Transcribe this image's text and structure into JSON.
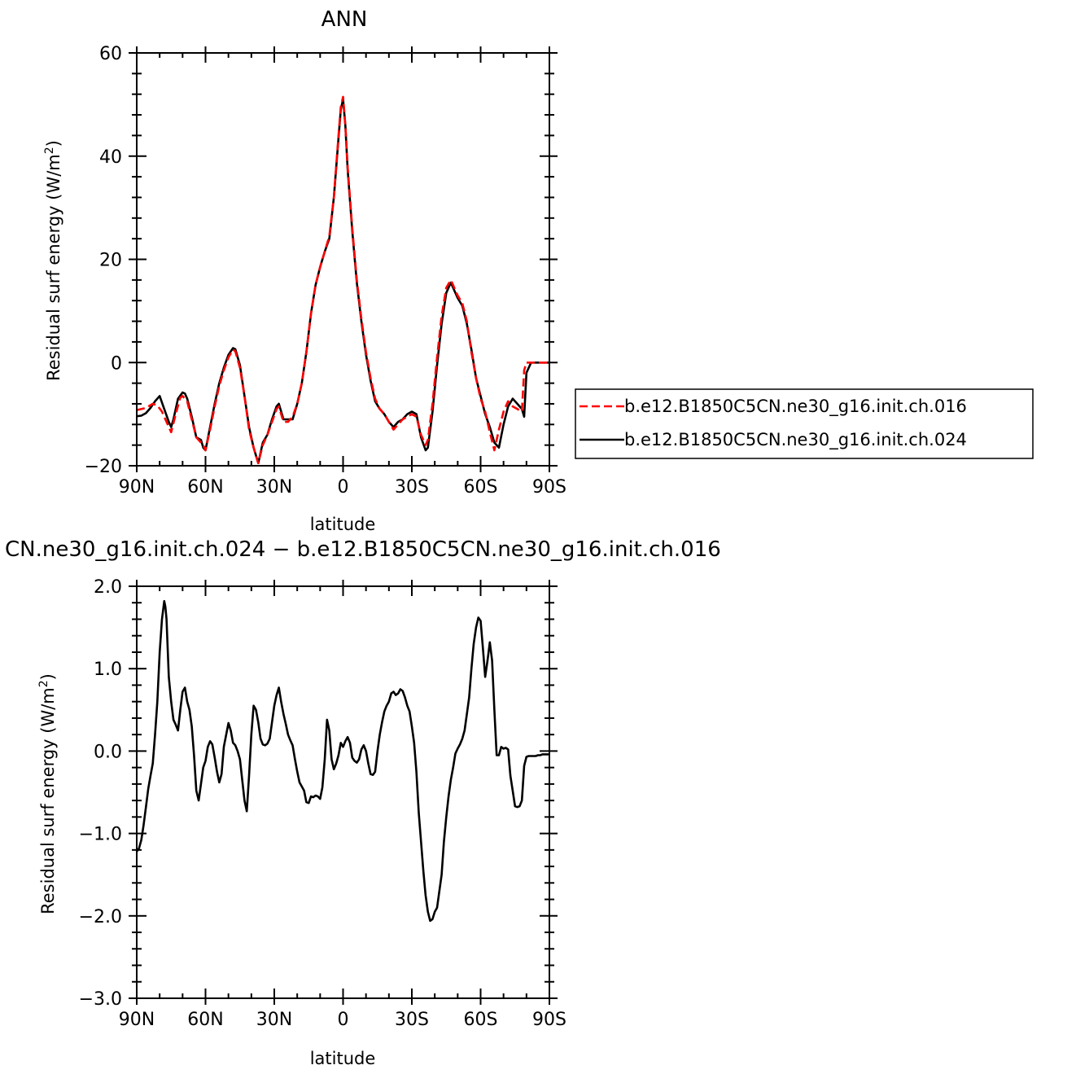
{
  "chart_data": [
    {
      "type": "line",
      "title": "ANN",
      "xlabel": "latitude",
      "ylabel": "Residual surf energy (W/m²)",
      "ylabel_base": "Residual surf energy (W/m",
      "ylabel_sup": "2",
      "ylabel_end": ")",
      "xlim": [
        90,
        -90
      ],
      "ylim": [
        -20,
        60
      ],
      "xticks": [
        90,
        60,
        30,
        0,
        -30,
        -60,
        -90
      ],
      "xtick_labels": [
        "90N",
        "60N",
        "30N",
        "0",
        "30S",
        "60S",
        "90S"
      ],
      "yticks": [
        -20,
        0,
        20,
        40,
        60
      ],
      "ytick_labels": [
        "−20",
        "0",
        "20",
        "40",
        "60"
      ],
      "legend": "right",
      "series": [
        {
          "name": "b.e12.B1850C5CN.ne30_g16.init.ch.016",
          "color": "#ff0000",
          "dash": true,
          "x": [
            90,
            86,
            83,
            81,
            79,
            77,
            75,
            73,
            71,
            70,
            68,
            66,
            64,
            62,
            61,
            60,
            58,
            56,
            54,
            52,
            50,
            48,
            47,
            45,
            43,
            41,
            39,
            37,
            35,
            33,
            31,
            29,
            28,
            26,
            24,
            22,
            20,
            18,
            16,
            14,
            12,
            10,
            8,
            6,
            4,
            2,
            1,
            0,
            -1,
            -2,
            -4,
            -6,
            -8,
            -10,
            -12,
            -14,
            -16,
            -18,
            -20,
            -22,
            -24,
            -26,
            -28,
            -30,
            -32,
            -34,
            -36,
            -37,
            -39,
            -41,
            -43,
            -45,
            -47,
            -48,
            -50,
            -52,
            -54,
            -56,
            -58,
            -60,
            -62,
            -64,
            -66,
            -68,
            -70,
            -72,
            -74,
            -76,
            -78,
            -79,
            -80,
            -82,
            -84,
            -86,
            -88,
            -90
          ],
          "y": [
            -9.2,
            -8.8,
            -8.0,
            -8.3,
            -9.5,
            -11.5,
            -13.5,
            -10.0,
            -6.8,
            -6.5,
            -7.5,
            -11.0,
            -14.5,
            -15.5,
            -16.0,
            -17.0,
            -13.0,
            -8.5,
            -4.5,
            -1.5,
            1.0,
            2.5,
            2.2,
            -1.0,
            -6.5,
            -13.0,
            -16.5,
            -19.5,
            -16.0,
            -14.0,
            -11.5,
            -9.0,
            -8.5,
            -11.5,
            -11.5,
            -10.5,
            -8.0,
            -4.0,
            2.0,
            9.5,
            15.0,
            18.5,
            21.5,
            24.5,
            32.0,
            44.0,
            49.5,
            51.5,
            46.0,
            38.0,
            26.0,
            16.0,
            8.5,
            2.0,
            -3.0,
            -7.0,
            -9.0,
            -10.0,
            -11.5,
            -13.0,
            -12.0,
            -11.0,
            -10.5,
            -10.0,
            -10.5,
            -14.0,
            -16.0,
            -15.0,
            -8.0,
            1.0,
            9.0,
            14.5,
            16.0,
            15.0,
            13.0,
            11.5,
            8.0,
            2.0,
            -3.0,
            -7.0,
            -9.5,
            -13.5,
            -17.0,
            -13.0,
            -9.5,
            -7.5,
            -8.5,
            -9.0,
            -9.5,
            -1.5,
            0,
            0,
            0,
            0,
            0,
            0
          ]
        },
        {
          "name": "b.e12.B1850C5CN.ne30_g16.init.ch.024",
          "color": "#000000",
          "dash": false,
          "x": [
            90,
            88,
            86,
            84,
            82,
            80,
            78,
            76,
            75,
            74,
            72,
            70,
            69,
            68,
            66,
            64,
            62,
            61,
            60,
            58,
            56,
            54,
            52,
            50,
            48,
            47,
            45,
            43,
            41,
            39,
            37,
            35,
            33,
            31,
            29,
            28,
            26,
            24,
            22,
            20,
            18,
            16,
            14,
            12,
            10,
            8,
            6,
            4,
            2,
            1,
            0,
            -1,
            -2,
            -4,
            -6,
            -8,
            -10,
            -12,
            -14,
            -16,
            -18,
            -20,
            -22,
            -24,
            -26,
            -28,
            -30,
            -32,
            -34,
            -36,
            -37,
            -39,
            -41,
            -43,
            -45,
            -47,
            -48,
            -50,
            -52,
            -54,
            -56,
            -58,
            -60,
            -62,
            -64,
            -66,
            -68,
            -70,
            -72,
            -74,
            -76,
            -78,
            -79,
            -80,
            -82,
            -84,
            -86,
            -88,
            -90
          ],
          "y": [
            -10.4,
            -10.3,
            -9.8,
            -8.8,
            -7.5,
            -6.5,
            -9.0,
            -11.5,
            -12.5,
            -11.0,
            -7.0,
            -5.8,
            -6.0,
            -7.0,
            -10.5,
            -14.5,
            -15.0,
            -16.5,
            -17.0,
            -12.5,
            -8.0,
            -4.0,
            -1.0,
            1.5,
            2.8,
            2.6,
            -0.5,
            -6.5,
            -12.5,
            -16.5,
            -19.5,
            -15.5,
            -14.0,
            -11.0,
            -8.5,
            -8.0,
            -11.0,
            -11.0,
            -11.0,
            -8.0,
            -4.0,
            2.0,
            9.5,
            15.0,
            18.5,
            21.5,
            24.0,
            32.0,
            43.5,
            49.0,
            51.0,
            46.0,
            37.5,
            25.5,
            15.5,
            8.0,
            1.5,
            -3.5,
            -7.5,
            -9.0,
            -10.0,
            -11.5,
            -12.5,
            -11.5,
            -11.0,
            -10.0,
            -9.5,
            -10.0,
            -14.5,
            -17.0,
            -16.5,
            -9.5,
            -0.5,
            7.5,
            13.5,
            15.5,
            14.5,
            12.5,
            11.0,
            7.5,
            2.5,
            -3.0,
            -6.5,
            -10.0,
            -12.5,
            -15.5,
            -16.5,
            -12.0,
            -8.5,
            -7.0,
            -8.0,
            -9.0,
            -10.5,
            -2.0,
            0,
            0,
            0,
            0,
            0
          ]
        }
      ]
    },
    {
      "type": "line",
      "title": "CN.ne30_g16.init.ch.024 − b.e12.B1850C5CN.ne30_g16.init.ch.016",
      "xlabel": "latitude",
      "ylabel": "Residual surf energy (W/m²)",
      "ylabel_base": "Residual surf energy (W/m",
      "ylabel_sup": "2",
      "ylabel_end": ")",
      "xlim": [
        90,
        -90
      ],
      "ylim": [
        -3,
        2
      ],
      "xticks": [
        90,
        60,
        30,
        0,
        -30,
        -60,
        -90
      ],
      "xtick_labels": [
        "90N",
        "60N",
        "30N",
        "0",
        "30S",
        "60S",
        "90S"
      ],
      "yticks": [
        -3,
        -2,
        -1,
        0,
        1,
        2
      ],
      "ytick_labels": [
        "−3.0",
        "−2.0",
        "−1.0",
        "0.0",
        "1.0",
        "2.0"
      ],
      "series": [
        {
          "name": "",
          "color": "#000000",
          "dash": false,
          "x": [
            90,
            89,
            88,
            87,
            86,
            85,
            84,
            83,
            82,
            81,
            80,
            79,
            78,
            77.5,
            77,
            76,
            75,
            74,
            73,
            72,
            71,
            70,
            69,
            68,
            67,
            66,
            65,
            64,
            63,
            62,
            61,
            60,
            59,
            58,
            57,
            56,
            55,
            54,
            53,
            52,
            51,
            50,
            49,
            48,
            47,
            46,
            45,
            44,
            43,
            42,
            41,
            40,
            39,
            38,
            37,
            36,
            35,
            34,
            33,
            32,
            31,
            30,
            29,
            28,
            27,
            26,
            25,
            24,
            23,
            22,
            21,
            20,
            19,
            18,
            17,
            16,
            15,
            14,
            13,
            12,
            11,
            10,
            9,
            8,
            7,
            6,
            5,
            4,
            3,
            2,
            1,
            0,
            -1,
            -2,
            -3,
            -4,
            -5,
            -6,
            -7,
            -8,
            -9,
            -10,
            -11,
            -12,
            -13,
            -14,
            -15,
            -16,
            -17,
            -18,
            -19,
            -20,
            -21,
            -22,
            -23,
            -24,
            -25,
            -26,
            -27,
            -28,
            -29,
            -30,
            -31,
            -32,
            -33,
            -34,
            -35,
            -36,
            -37,
            -38,
            -39,
            -40,
            -41,
            -42,
            -43,
            -44,
            -45,
            -46,
            -47,
            -48,
            -49,
            -50,
            -51,
            -52,
            -53,
            -54,
            -55,
            -56,
            -57,
            -58,
            -59,
            -60,
            -61,
            -62,
            -63,
            -64,
            -65,
            -66,
            -67,
            -68,
            -69,
            -70,
            -71,
            -72,
            -73,
            -74,
            -75,
            -76,
            -77,
            -78,
            -79,
            -80,
            -81,
            -82,
            -83,
            -84,
            -85,
            -86,
            -87,
            -88,
            -89,
            -90
          ],
          "y": [
            -1.22,
            -1.18,
            -1.08,
            -0.9,
            -0.68,
            -0.46,
            -0.3,
            -0.15,
            0.2,
            0.6,
            1.2,
            1.6,
            1.82,
            1.75,
            1.6,
            0.9,
            0.6,
            0.38,
            0.32,
            0.25,
            0.5,
            0.72,
            0.77,
            0.6,
            0.5,
            0.3,
            -0.05,
            -0.48,
            -0.6,
            -0.4,
            -0.2,
            -0.12,
            0.05,
            0.12,
            0.08,
            -0.08,
            -0.25,
            -0.38,
            -0.28,
            0.05,
            0.2,
            0.34,
            0.25,
            0.1,
            0.07,
            0.0,
            -0.1,
            -0.35,
            -0.6,
            -0.73,
            -0.3,
            0.2,
            0.55,
            0.5,
            0.35,
            0.15,
            0.08,
            0.07,
            0.09,
            0.15,
            0.35,
            0.55,
            0.68,
            0.77,
            0.6,
            0.45,
            0.33,
            0.2,
            0.13,
            0.07,
            -0.1,
            -0.25,
            -0.38,
            -0.43,
            -0.48,
            -0.62,
            -0.63,
            -0.55,
            -0.56,
            -0.54,
            -0.55,
            -0.58,
            -0.44,
            -0.1,
            0.38,
            0.25,
            -0.1,
            -0.22,
            -0.15,
            -0.05,
            0.1,
            0.05,
            0.12,
            0.17,
            0.1,
            -0.08,
            -0.12,
            -0.14,
            -0.1,
            0.02,
            0.07,
            0.0,
            -0.15,
            -0.28,
            -0.29,
            -0.25,
            0.0,
            0.2,
            0.35,
            0.48,
            0.55,
            0.6,
            0.7,
            0.72,
            0.68,
            0.7,
            0.75,
            0.73,
            0.65,
            0.55,
            0.48,
            0.3,
            0.1,
            -0.25,
            -0.75,
            -1.1,
            -1.45,
            -1.75,
            -1.95,
            -2.06,
            -2.04,
            -1.95,
            -1.9,
            -1.7,
            -1.5,
            -1.1,
            -0.8,
            -0.55,
            -0.35,
            -0.2,
            -0.03,
            0.03,
            0.08,
            0.15,
            0.25,
            0.45,
            0.65,
            1.0,
            1.3,
            1.5,
            1.62,
            1.58,
            1.25,
            0.9,
            1.1,
            1.32,
            1.1,
            0.5,
            -0.05,
            -0.05,
            0.05,
            0.03,
            0.04,
            0.02,
            -0.3,
            -0.48,
            -0.67,
            -0.68,
            -0.67,
            -0.6,
            -0.18,
            -0.07,
            -0.06,
            -0.06,
            -0.06,
            -0.06,
            -0.05,
            -0.05,
            -0.04,
            -0.04,
            -0.04,
            -0.04
          ]
        }
      ]
    }
  ]
}
